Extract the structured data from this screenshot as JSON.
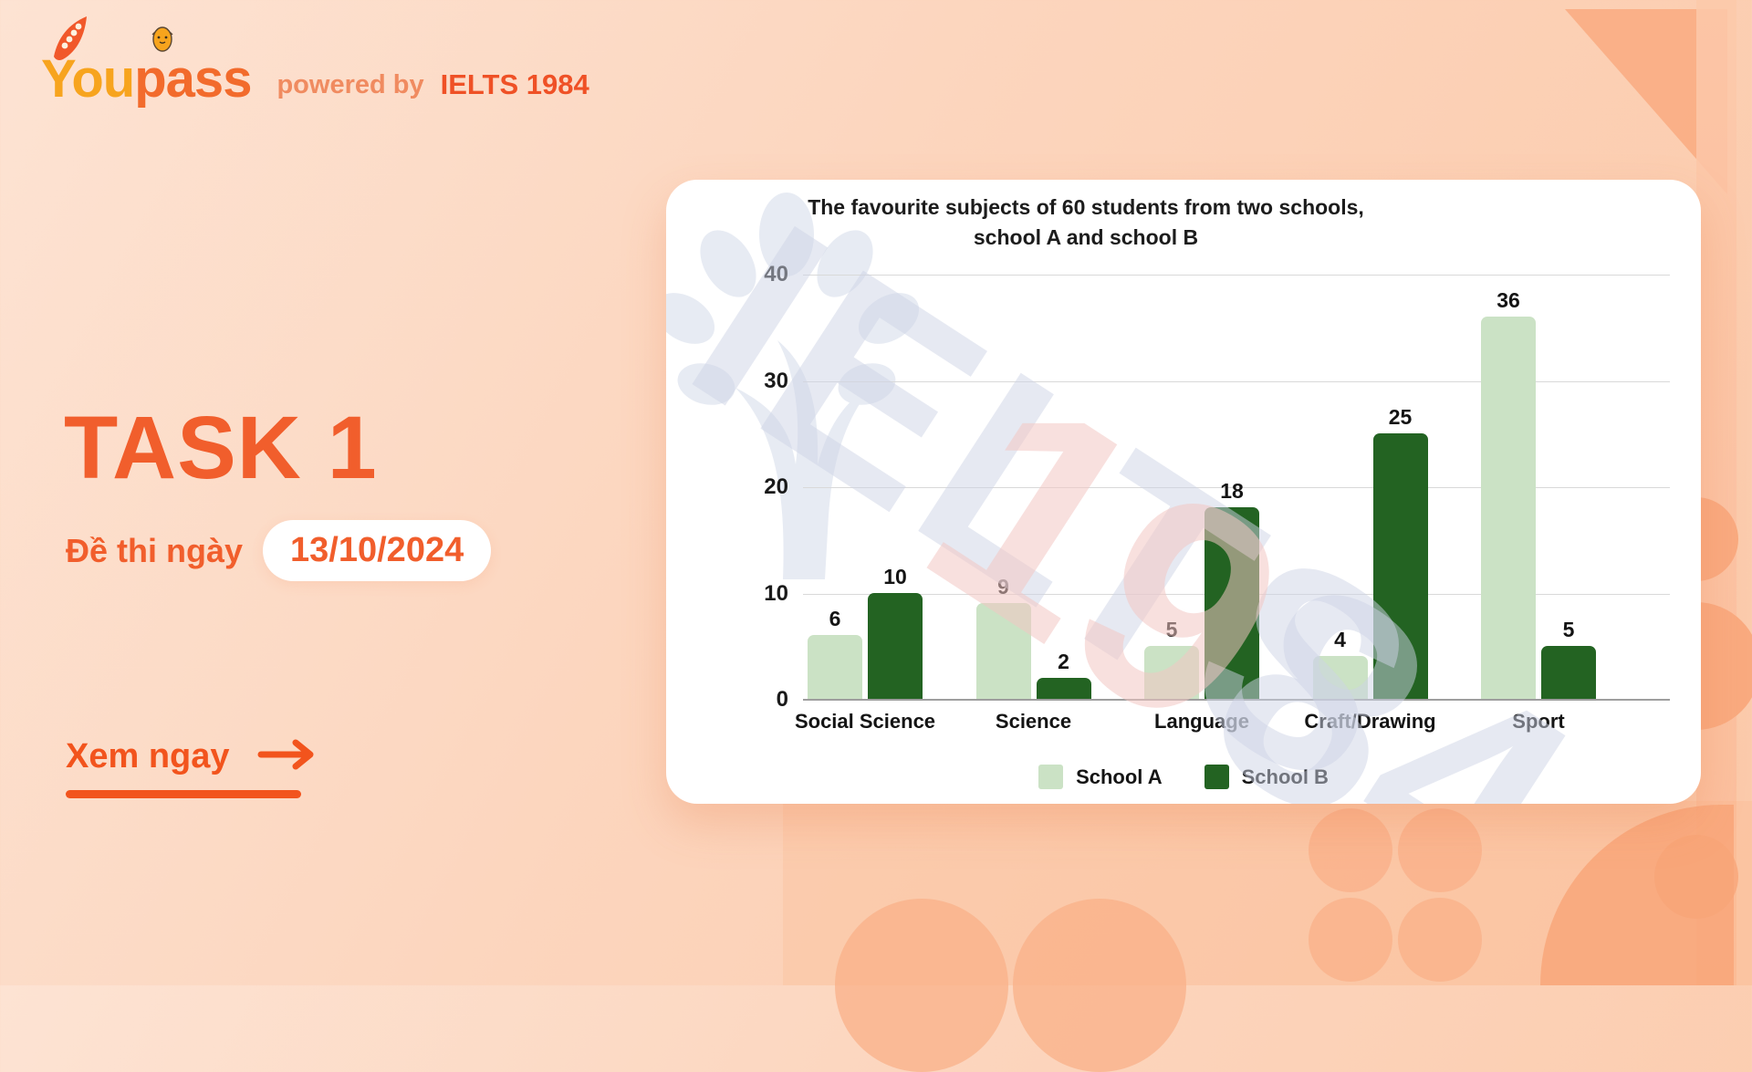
{
  "brand": {
    "name_part1": "You",
    "name_part2": "pass",
    "powered_by": "powered by",
    "partner": "IELTS 1984"
  },
  "hero": {
    "title": "TASK 1",
    "date_label": "Đề thi ngày",
    "date_value": "13/10/2024",
    "cta_label": "Xem ngay"
  },
  "watermark": {
    "brand": "IELTS",
    "year_first": "19",
    "year_second": "84"
  },
  "chart_data": {
    "type": "bar",
    "title_line1": "The favourite subjects of 60 students from two schools,",
    "title_line2": "school A and school B",
    "categories": [
      "Social Science",
      "Science",
      "Language",
      "Craft/Drawing",
      "Sport"
    ],
    "series": [
      {
        "name": "School A",
        "color": "#cbe2c5",
        "values": [
          6,
          9,
          5,
          4,
          36
        ]
      },
      {
        "name": "School B",
        "color": "#236322",
        "values": [
          10,
          2,
          18,
          25,
          5
        ]
      }
    ],
    "ylim": [
      0,
      40
    ],
    "yticks": [
      0,
      10,
      20,
      30,
      40
    ],
    "grid": true,
    "legend_position": "bottom",
    "colors": {
      "axis_line": "#9e9e9e",
      "gridline": "#d9d9d9",
      "label_text": "#141414"
    }
  }
}
